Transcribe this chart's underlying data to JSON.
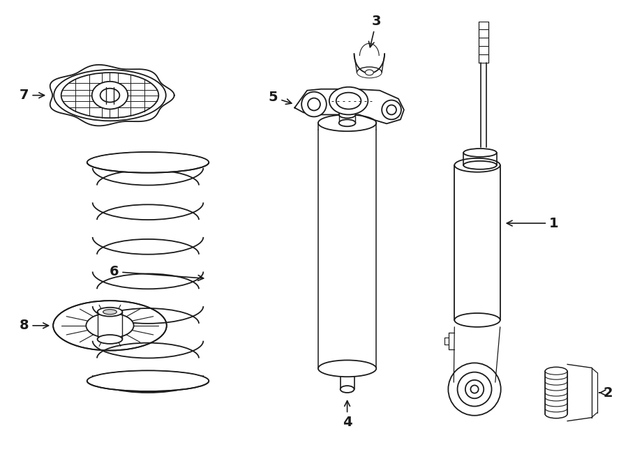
{
  "bg_color": "#ffffff",
  "line_color": "#1a1a1a",
  "line_width": 1.3,
  "fig_width": 9.0,
  "fig_height": 6.61
}
